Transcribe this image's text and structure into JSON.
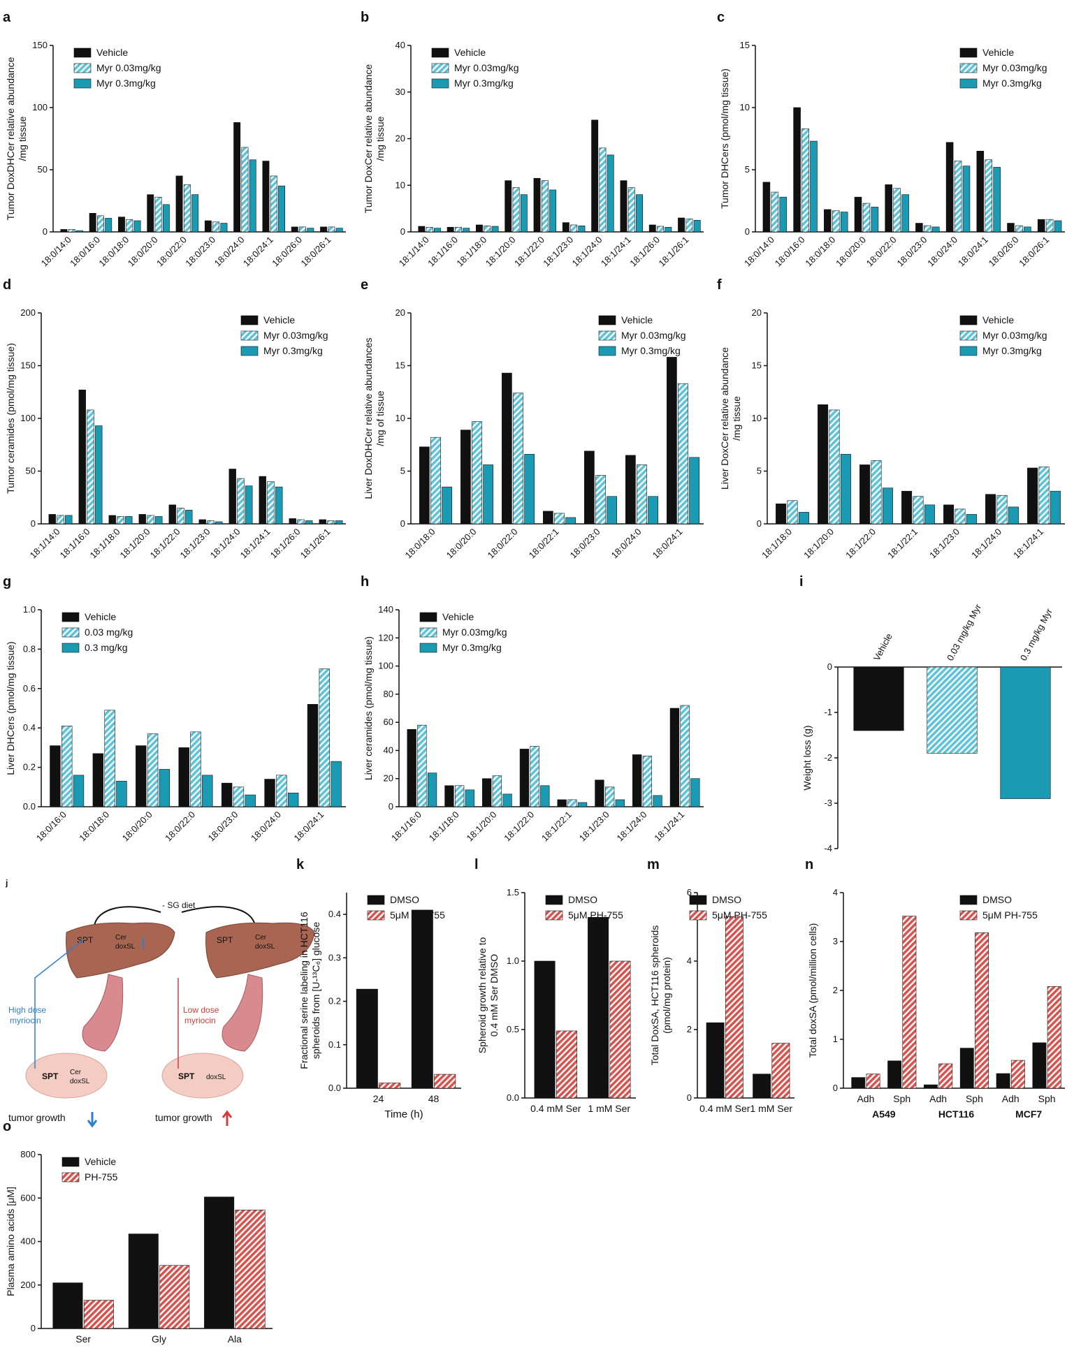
{
  "chart_data": [
    {
      "type": "bar",
      "panel": "a",
      "y_label": [
        "Tumor DoxDHCer relative abundance",
        "/mg tissue"
      ],
      "legend": "upper left",
      "categories": [
        "18:0/14:0",
        "18:0/16:0",
        "18:0/18:0",
        "18:0/20:0",
        "18:0/22:0",
        "18:0/23:0",
        "18:0/24:0",
        "18:0/24:1",
        "18:0/26:0",
        "18:0/26:1"
      ],
      "series": [
        {
          "name": "Vehicle",
          "color": "#111111",
          "hatch": false,
          "values": [
            2,
            15,
            12,
            30,
            45,
            9,
            88,
            57,
            4,
            4
          ]
        },
        {
          "name": "Myr 0.03mg/kg",
          "color": "#5cc3d8",
          "hatch": true,
          "values": [
            2,
            13,
            10,
            28,
            38,
            8,
            68,
            45,
            4,
            4
          ]
        },
        {
          "name": "Myr 0.3mg/kg",
          "color": "#1a9bb3",
          "hatch": false,
          "values": [
            1,
            11,
            9,
            22,
            30,
            7,
            58,
            37,
            3,
            3
          ]
        }
      ],
      "ylim": [
        0,
        150
      ],
      "yticks": [
        0,
        50,
        100,
        150
      ]
    },
    {
      "type": "bar",
      "panel": "b",
      "y_label": [
        "Tumor DoxCer relative abundance",
        "/mg tissue"
      ],
      "legend": "upper left",
      "categories": [
        "18:1/14:0",
        "18:1/16:0",
        "18:1/18:0",
        "18:1/20:0",
        "18:1/22:0",
        "18:1/23:0",
        "18:1/24:0",
        "18:1/24:1",
        "18:1/26:0",
        "18:1/26:1"
      ],
      "series": [
        {
          "name": "Vehicle",
          "color": "#111111",
          "hatch": false,
          "values": [
            1.2,
            1,
            1.5,
            11,
            11.5,
            2,
            24,
            11,
            1.5,
            3
          ]
        },
        {
          "name": "Myr 0.03mg/kg",
          "color": "#5cc3d8",
          "hatch": true,
          "values": [
            1,
            1,
            1.3,
            9.5,
            11,
            1.5,
            18,
            9.5,
            1.2,
            2.8
          ]
        },
        {
          "name": "Myr 0.3mg/kg",
          "color": "#1a9bb3",
          "hatch": false,
          "values": [
            0.8,
            0.8,
            1.2,
            8,
            9,
            1.3,
            16.5,
            8,
            1,
            2.5
          ]
        }
      ],
      "ylim": [
        0,
        40
      ],
      "yticks": [
        0,
        10,
        20,
        30,
        40
      ]
    },
    {
      "type": "bar",
      "panel": "c",
      "y_label": [
        "Tumor DHCers (pmol/mg tissue)"
      ],
      "legend": "upper right",
      "categories": [
        "18:0/14:0",
        "18:0/16:0",
        "18:0/18:0",
        "18:0/20:0",
        "18:0/22:0",
        "18:0/23:0",
        "18:0/24:0",
        "18:0/24:1",
        "18:0/26:0",
        "18:0/26:1"
      ],
      "series": [
        {
          "name": "Vehicle",
          "color": "#111111",
          "hatch": false,
          "values": [
            4,
            10,
            1.8,
            2.8,
            3.8,
            0.7,
            7.2,
            6.5,
            0.7,
            1
          ]
        },
        {
          "name": "Myr 0.03mg/kg",
          "color": "#5cc3d8",
          "hatch": true,
          "values": [
            3.2,
            8.3,
            1.7,
            2.3,
            3.5,
            0.5,
            5.7,
            5.8,
            0.5,
            1
          ]
        },
        {
          "name": "Myr 0.3mg/kg",
          "color": "#1a9bb3",
          "hatch": false,
          "values": [
            2.8,
            7.3,
            1.6,
            2,
            3,
            0.4,
            5.3,
            5.2,
            0.4,
            0.9
          ]
        }
      ],
      "ylim": [
        0,
        15
      ],
      "yticks": [
        0,
        5,
        10,
        15
      ]
    },
    {
      "type": "bar",
      "panel": "d",
      "y_label": [
        "Tumor ceramides (pmol/mg tissue)"
      ],
      "legend": "upper right",
      "categories": [
        "18:1/14:0",
        "18:1/16:0",
        "18:1/18:0",
        "18:1/20:0",
        "18:1/22:0",
        "18:1/23:0",
        "18:1/24:0",
        "18:1/24:1",
        "18:1/26:0",
        "18:1/26:1"
      ],
      "series": [
        {
          "name": "Vehicle",
          "color": "#111111",
          "hatch": false,
          "values": [
            9,
            127,
            8,
            9,
            18,
            4,
            52,
            45,
            5,
            4
          ]
        },
        {
          "name": "Myr 0.03mg/kg",
          "color": "#5cc3d8",
          "hatch": true,
          "values": [
            8,
            108,
            7,
            8,
            15,
            3,
            43,
            40,
            4,
            3
          ]
        },
        {
          "name": "Myr 0.3mg/kg",
          "color": "#1a9bb3",
          "hatch": false,
          "values": [
            8,
            93,
            7,
            7,
            13,
            2,
            36,
            35,
            3,
            3
          ]
        }
      ],
      "ylim": [
        0,
        200
      ],
      "yticks": [
        0,
        50,
        100,
        150,
        200
      ]
    },
    {
      "type": "bar",
      "panel": "e",
      "y_label": [
        "Liver DoxDHCer relative abundances",
        "/mg of tissue"
      ],
      "legend": "upper right",
      "categories": [
        "18:0/18:0",
        "18:0/20:0",
        "18:0/22:0",
        "18:0/22:1",
        "18:0/23:0",
        "18:0/24:0",
        "18:0/24:1"
      ],
      "series": [
        {
          "name": "Vehicle",
          "color": "#111111",
          "hatch": false,
          "values": [
            7.3,
            8.9,
            14.3,
            1.2,
            6.9,
            6.5,
            15.8
          ]
        },
        {
          "name": "Myr 0.03mg/kg",
          "color": "#5cc3d8",
          "hatch": true,
          "values": [
            8.2,
            9.7,
            12.4,
            1,
            4.6,
            5.6,
            13.3
          ]
        },
        {
          "name": "Myr 0.3mg/kg",
          "color": "#1a9bb3",
          "hatch": false,
          "values": [
            3.5,
            5.6,
            6.6,
            0.6,
            2.6,
            2.6,
            6.3
          ]
        }
      ],
      "ylim": [
        0,
        20
      ],
      "yticks": [
        0,
        5,
        10,
        15,
        20
      ]
    },
    {
      "type": "bar",
      "panel": "f",
      "y_label": [
        "Liver DoxCer relative abundance",
        "/mg tissue"
      ],
      "legend": "upper right",
      "categories": [
        "18:1/18:0",
        "18:1/20:0",
        "18:1/22:0",
        "18:1/22:1",
        "18:1/23:0",
        "18:1/24:0",
        "18:1/24:1"
      ],
      "series": [
        {
          "name": "Vehicle",
          "color": "#111111",
          "hatch": false,
          "values": [
            1.9,
            11.3,
            5.6,
            3.1,
            1.8,
            2.8,
            5.3
          ]
        },
        {
          "name": "Myr 0.03mg/kg",
          "color": "#5cc3d8",
          "hatch": true,
          "values": [
            2.2,
            10.8,
            6,
            2.6,
            1.4,
            2.7,
            5.4
          ]
        },
        {
          "name": "Myr 0.3mg/kg",
          "color": "#1a9bb3",
          "hatch": false,
          "values": [
            1.1,
            6.6,
            3.4,
            1.8,
            0.9,
            1.6,
            3.1
          ]
        }
      ],
      "ylim": [
        0,
        20
      ],
      "yticks": [
        0,
        5,
        10,
        15,
        20
      ]
    },
    {
      "type": "bar",
      "panel": "g",
      "y_label": [
        "Liver DHCers (pmol/mg tissue)"
      ],
      "legend": "upper left",
      "categories": [
        "18:0/16:0",
        "18:0/18:0",
        "18:0/20:0",
        "18:0/22:0",
        "18:0/23:0",
        "18:0/24:0",
        "18:0/24:1"
      ],
      "series": [
        {
          "name": "Vehicle",
          "color": "#111111",
          "hatch": false,
          "values": [
            0.31,
            0.27,
            0.31,
            0.3,
            0.12,
            0.14,
            0.52
          ]
        },
        {
          "name": "0.03 mg/kg",
          "color": "#5cc3d8",
          "hatch": true,
          "values": [
            0.41,
            0.49,
            0.37,
            0.38,
            0.1,
            0.16,
            0.7
          ]
        },
        {
          "name": "0.3 mg/kg",
          "color": "#1a9bb3",
          "hatch": false,
          "values": [
            0.16,
            0.13,
            0.19,
            0.16,
            0.06,
            0.07,
            0.23
          ]
        }
      ],
      "ylim": [
        0,
        1
      ],
      "yticks": [
        {
          "value": 0,
          "label": "0.0"
        },
        0.2,
        0.4,
        0.6,
        0.8,
        {
          "value": 1,
          "label": "1.0"
        }
      ]
    },
    {
      "type": "bar",
      "panel": "h",
      "y_label": [
        "Liver ceramides (pmol/mg tissue)"
      ],
      "legend": "upper left",
      "categories": [
        "18:1/16:0",
        "18:1/18:0",
        "18:1/20:0",
        "18:1/22:0",
        "18:1/22:1",
        "18:1/23:0",
        "18:1/24:0",
        "18:1/24:1"
      ],
      "series": [
        {
          "name": "Vehicle",
          "color": "#111111",
          "hatch": false,
          "values": [
            55,
            15,
            20,
            41,
            5,
            19,
            37,
            70
          ]
        },
        {
          "name": "Myr 0.03mg/kg",
          "color": "#5cc3d8",
          "hatch": true,
          "values": [
            58,
            15,
            22,
            43,
            5,
            14,
            36,
            72
          ]
        },
        {
          "name": "Myr 0.3mg/kg",
          "color": "#1a9bb3",
          "hatch": false,
          "values": [
            24,
            12,
            9,
            15,
            3,
            5,
            8,
            20
          ]
        }
      ],
      "ylim": [
        0,
        140
      ],
      "yticks": [
        0,
        20,
        40,
        60,
        80,
        100,
        120,
        140
      ]
    },
    {
      "type": "bar",
      "panel": "i",
      "y_label": [
        "Weight loss (g)"
      ],
      "xaxis_position": "top",
      "categories": [
        "Vehicle",
        "0.03 mg/kg Myr",
        "0.3 mg/kg Myr"
      ],
      "values": [
        -1.4,
        -1.9,
        -2.9
      ],
      "colors": [
        "#111111",
        "#5cc3d8",
        "#1a9bb3"
      ],
      "hatch": [
        false,
        true,
        false
      ],
      "ylim": [
        -4,
        0
      ],
      "yticks": [
        0,
        -1,
        -2,
        -3,
        -4
      ]
    },
    {
      "type": "bar",
      "panel": "k",
      "y_label": [
        "Fractional serine labeling in HCT116",
        "spheroids from [U-¹³C₆] glucose"
      ],
      "x_label": "Time (h)",
      "legend": "upper left",
      "categories": [
        "24",
        "48"
      ],
      "series": [
        {
          "name": "DMSO",
          "color": "#111111",
          "hatch": false,
          "values": [
            0.228,
            0.41
          ]
        },
        {
          "name": "5μM PH-755",
          "color": "#d9534f",
          "hatch": true,
          "values": [
            0.012,
            0.032
          ]
        }
      ],
      "ylim": [
        0,
        0.45
      ],
      "yticks": [
        {
          "value": 0,
          "label": "0.0"
        },
        0.1,
        0.2,
        0.3,
        0.4
      ]
    },
    {
      "type": "bar",
      "panel": "l",
      "y_label": [
        "Spheroid  growth relative to",
        "0.4 mM Ser DMSO"
      ],
      "legend": "upper left",
      "categories": [
        "0.4 mM Ser",
        "1 mM Ser"
      ],
      "series": [
        {
          "name": "DMSO",
          "color": "#111111",
          "hatch": false,
          "values": [
            1,
            1.32
          ]
        },
        {
          "name": "5μM PH-755",
          "color": "#d9534f",
          "hatch": true,
          "values": [
            0.49,
            1
          ]
        }
      ],
      "ylim": [
        0,
        1.5
      ],
      "yticks": [
        {
          "value": 0,
          "label": "0.0"
        },
        0.5,
        {
          "value": 1,
          "label": "1.0"
        },
        1.5
      ]
    },
    {
      "type": "bar",
      "panel": "m",
      "y_label": [
        "Total DoxSA, HCT116 spheroids",
        "(pmol/mg protein)"
      ],
      "legend": "upper right",
      "categories": [
        "0.4 mM Ser",
        "1 mM Ser"
      ],
      "series": [
        {
          "name": "DMSO",
          "color": "#111111",
          "hatch": false,
          "values": [
            2.2,
            0.7
          ]
        },
        {
          "name": "5μM PH-755",
          "color": "#d9534f",
          "hatch": true,
          "values": [
            5.3,
            1.6
          ]
        }
      ],
      "ylim": [
        0,
        6
      ],
      "yticks": [
        0,
        2,
        4,
        6
      ]
    },
    {
      "type": "bar",
      "panel": "n",
      "y_label": [
        "Total doxSA (pmol/million cells)"
      ],
      "legend": "upper right",
      "categories": [
        "Adh",
        "Sph",
        "Adh",
        "Sph",
        "Adh",
        "Sph"
      ],
      "group_labels": [
        "A549",
        "HCT116",
        "MCF7"
      ],
      "series": [
        {
          "name": "DMSO",
          "color": "#111111",
          "hatch": false,
          "values": [
            0.22,
            0.56,
            0.07,
            0.82,
            0.3,
            0.93
          ]
        },
        {
          "name": "5μM PH-755",
          "color": "#d9534f",
          "hatch": true,
          "values": [
            0.29,
            3.52,
            0.5,
            3.18,
            0.57,
            2.08
          ]
        }
      ],
      "ylim": [
        0,
        4
      ],
      "yticks": [
        0,
        1,
        2,
        3,
        4
      ]
    },
    {
      "type": "bar",
      "panel": "o",
      "y_label": [
        "Plasma amino acids [μM]"
      ],
      "legend": "upper left",
      "categories": [
        "Ser",
        "Gly",
        "Ala"
      ],
      "series": [
        {
          "name": "Vehicle",
          "color": "#111111",
          "hatch": false,
          "values": [
            210,
            435,
            605
          ]
        },
        {
          "name": "PH-755",
          "color": "#d9534f",
          "hatch": true,
          "values": [
            130,
            290,
            545
          ]
        }
      ],
      "ylim": [
        0,
        800
      ],
      "yticks": [
        0,
        200,
        400,
        600,
        800
      ]
    }
  ],
  "diagram": {
    "label": "j",
    "diet": "- SG diet",
    "left": {
      "spt": "SPT",
      "cer": "Cer",
      "doxsl": "doxSL",
      "drug": [
        "High dose",
        "myriocin"
      ],
      "tumor_spt": "SPT",
      "tumor_cer": "Cer",
      "tumor_doxsl": "doxSL",
      "outcome": "tumor growth"
    },
    "right": {
      "spt": "SPT",
      "cer": "Cer",
      "doxsl": "doxSL",
      "drug": [
        "Low dose",
        "myriocin"
      ],
      "tumor_spt": "SPT",
      "tumor_doxsl": "doxSL",
      "outcome": "tumor growth"
    }
  }
}
